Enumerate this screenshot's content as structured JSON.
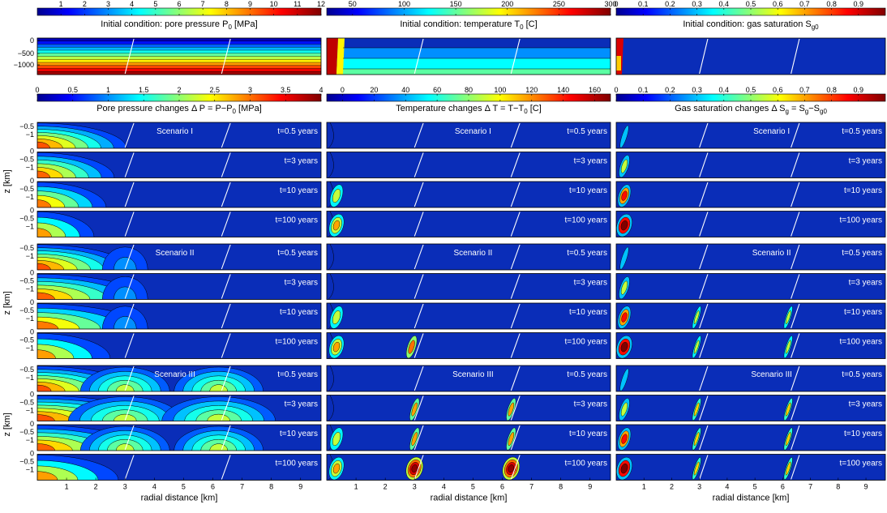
{
  "chart_data": {
    "type": "heatmap",
    "columns": [
      {
        "variable": "pore_pressure",
        "initial": {
          "title": "Initial condition: pore pressure P",
          "title_sub": "0",
          "title_suffix": " [MPa]",
          "colorbar_ticks": [
            "1",
            "2",
            "3",
            "4",
            "5",
            "6",
            "7",
            "8",
            "9",
            "10",
            "11",
            "12"
          ],
          "colorbar_range": [
            0,
            12
          ],
          "y_ticks": [
            "0",
            "−500",
            "−1000"
          ]
        },
        "changes": {
          "title": "Pore pressure changes    Δ P = P−P",
          "title_sub": "0",
          "title_suffix": " [MPa]",
          "colorbar_ticks": [
            "0",
            "0.5",
            "1",
            "1.5",
            "2",
            "2.5",
            "3",
            "3.5",
            "4"
          ],
          "colorbar_range": [
            0,
            4
          ]
        }
      },
      {
        "variable": "temperature",
        "initial": {
          "title": "Initial condition: temperature T",
          "title_sub": "0",
          "title_suffix": " [C]",
          "colorbar_ticks": [
            "50",
            "100",
            "150",
            "200",
            "250",
            "300"
          ],
          "colorbar_range": [
            25,
            300
          ]
        },
        "changes": {
          "title": "Temperature changes    Δ T = T−T",
          "title_sub": "0",
          "title_suffix": " [C]",
          "colorbar_ticks": [
            "0",
            "20",
            "40",
            "60",
            "80",
            "100",
            "120",
            "140",
            "160"
          ],
          "colorbar_range": [
            -10,
            170
          ]
        }
      },
      {
        "variable": "gas_saturation",
        "initial": {
          "title": "Initial condition: gas saturation S",
          "title_sub": "g0",
          "title_suffix": "",
          "colorbar_ticks": [
            "0",
            "0.1",
            "0.2",
            "0.3",
            "0.4",
            "0.5",
            "0.6",
            "0.7",
            "0.8",
            "0.9"
          ],
          "colorbar_range": [
            0,
            1
          ]
        },
        "changes": {
          "title": "Gas saturation changes    Δ S",
          "title_sub": "g",
          "title_suffix": " = S",
          "title_sub2": "g",
          "title_suffix2": "−S",
          "title_sub3": "g0",
          "colorbar_ticks": [
            "0",
            "0.1",
            "0.2",
            "0.3",
            "0.4",
            "0.5",
            "0.6",
            "0.7",
            "0.8",
            "0.9"
          ],
          "colorbar_range": [
            0,
            1
          ]
        }
      }
    ],
    "scenarios": [
      {
        "label": "Scenario I"
      },
      {
        "label": "Scenario II"
      },
      {
        "label": "Scenario III"
      }
    ],
    "times": [
      "t=0.5 years",
      "t=3 years",
      "t=10 years",
      "t=100 years"
    ],
    "panel_y_ticks": [
      "−0.5",
      "−1",
      "0",
      "−0.5",
      "−1",
      "0",
      "−0.5",
      "−1",
      "0",
      "−0.5",
      "−1"
    ],
    "panel_row_ticks": [
      "0",
      "−0.5",
      "−1"
    ],
    "ylabel": "z [km]",
    "xlabel": "radial distance [km]",
    "x_ticks": [
      "1",
      "2",
      "3",
      "4",
      "5",
      "6",
      "7",
      "8",
      "9"
    ],
    "x_range": [
      0,
      9.7
    ],
    "faults_km": [
      3.0,
      6.3
    ]
  },
  "colors": {
    "background_field": "#0a2db8",
    "fault_line": "#ffffff"
  }
}
